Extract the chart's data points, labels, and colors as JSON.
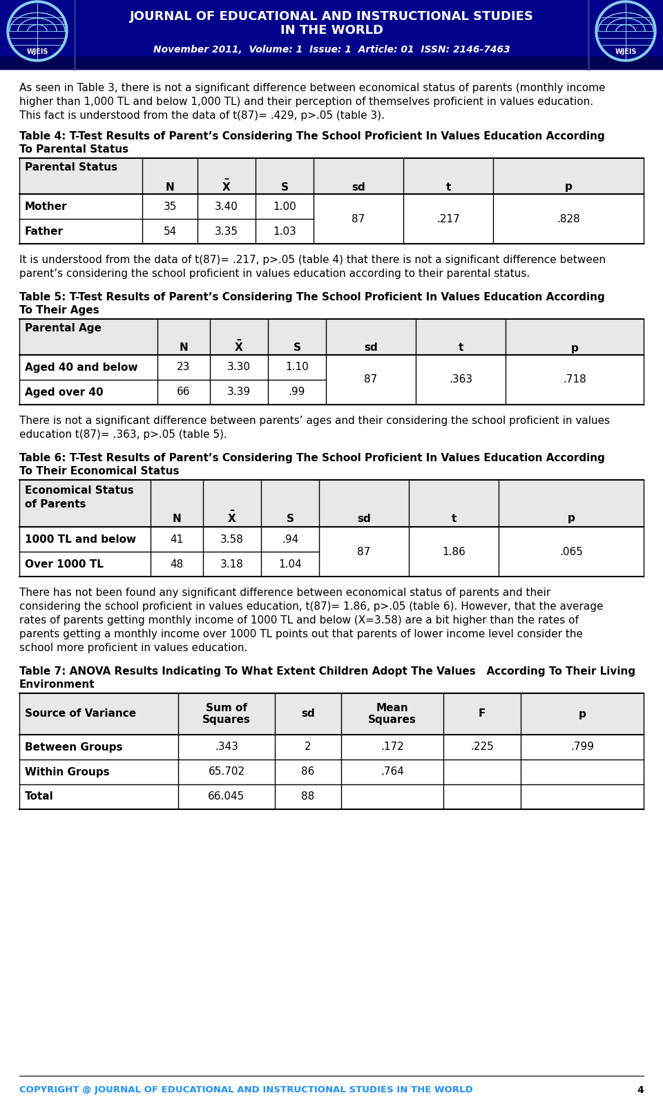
{
  "header_bg": "#00008B",
  "header_bg2": "#000066",
  "header_title1": "JOURNAL OF EDUCATIONAL AND INSTRUCTIONAL STUDIES",
  "header_title2": "IN THE WORLD",
  "header_subtitle": "November 2011,  Volume: 1  Issue: 1  Article: 01  ISSN: 2146-7463",
  "body_bg": "#FFFFFF",
  "page_number": "4",
  "footer_text": "COPYRIGHT @ JOURNAL OF EDUCATIONAL AND INSTRUCTIONAL STUDIES IN THE WORLD",
  "footer_color": "#1E90FF",
  "para1": "As seen in Table 3, there is not a significant difference between economical status of parents (monthly income\nhigher than 1,000 TL and below 1,000 TL) and their perception of themselves proficient in values education.\nThis fact is understood from the data of t(87)= .429, p>.05 (table 3).",
  "table4_title1": "Table 4: T-Test Results of Parent’s Considering The School Proficient In Values Education According",
  "table4_title2": "To Parental Status",
  "table4_rows": [
    [
      "Mother",
      "35",
      "3.40",
      "1.00",
      "87",
      ".217",
      ".828"
    ],
    [
      "Father",
      "54",
      "3.35",
      "1.03",
      "",
      "",
      ""
    ]
  ],
  "para2": "It is understood from the data of t(87)= .217, p>.05 (table 4) that there is not a significant difference between\nparent’s considering the school proficient in values education according to their parental status.",
  "table5_title1": "Table 5: T-Test Results of Parent’s Considering The School Proficient In Values Education According",
  "table5_title2": "To Their Ages",
  "table5_rows": [
    [
      "Aged 40 and below",
      "23",
      "3.30",
      "1.10",
      "87",
      ".363",
      ".718"
    ],
    [
      "Aged over 40",
      "66",
      "3.39",
      ".99",
      "",
      "",
      ""
    ]
  ],
  "para3": "There is not a significant difference between parents’ ages and their considering the school proficient in values\neducation t(87)= .363, p>.05 (table 5).",
  "table6_title1": "Table 6: T-Test Results of Parent’s Considering The School Proficient In Values Education According",
  "table6_title2": "To Their Economical Status",
  "table6_rows": [
    [
      "1000 TL and below",
      "41",
      "3.58",
      ".94",
      "87",
      "1.86",
      ".065"
    ],
    [
      "Over 1000 TL",
      "48",
      "3.18",
      "1.04",
      "",
      "",
      ""
    ]
  ],
  "para4": "There has not been found any significant difference between economical status of parents and their\nconsidering the school proficient in values education, t(87)= 1.86, p>.05 (table 6). However, that the average\nrates of parents getting monthly income of 1000 TL and below (X=3.58) are a bit higher than the rates of\nparents getting a monthly income over 1000 TL points out that parents of lower income level consider the\nschool more proficient in values education.",
  "table7_title1": "Table 7: ANOVA Results Indicating To What Extent Children Adopt The Values   According To Their Living",
  "table7_title2": "Environment",
  "table7_rows": [
    [
      "Between Groups",
      ".343",
      "2",
      ".172",
      ".225",
      ".799"
    ],
    [
      "Within Groups",
      "65.702",
      "86",
      ".764",
      "",
      ""
    ],
    [
      "Total",
      "66.045",
      "88",
      "",
      "",
      ""
    ]
  ]
}
